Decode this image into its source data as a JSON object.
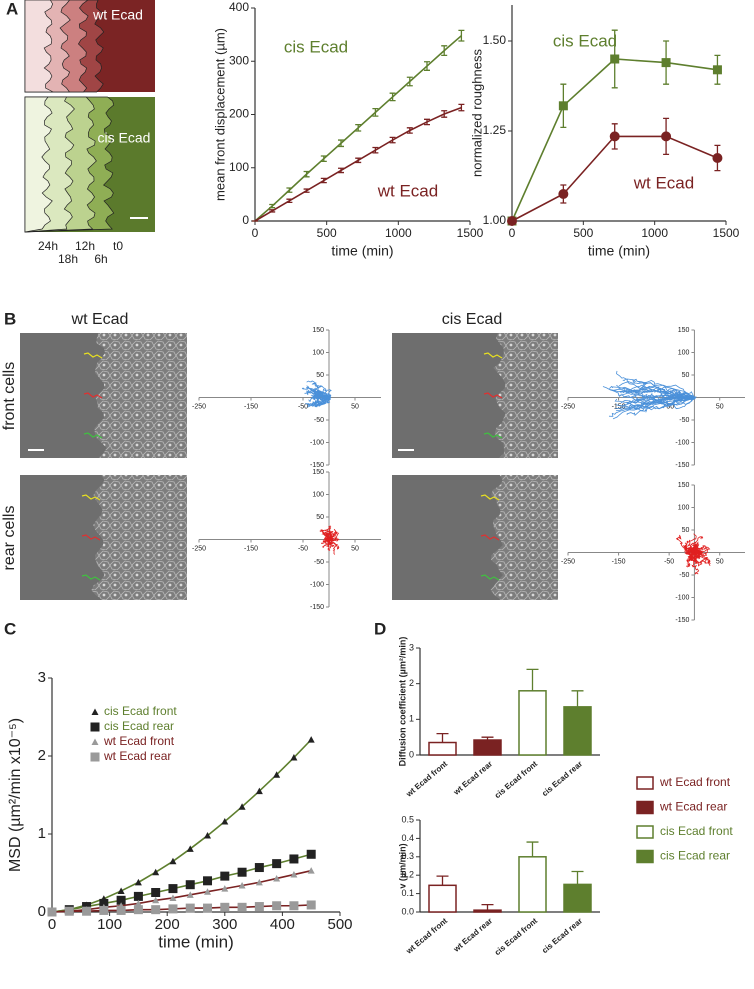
{
  "panel_labels": [
    "A",
    "B",
    "C",
    "D"
  ],
  "panel_a": {
    "image_labels": [
      "wt Ecad",
      "cis Ecad"
    ],
    "time_labels": [
      "24h",
      "18h",
      "12h",
      "6h",
      "t0"
    ]
  },
  "panel_b": {
    "column_titles": [
      "wt Ecad",
      "cis Ecad"
    ],
    "row_titles": [
      "front cells",
      "rear cells"
    ]
  },
  "chart_data": [
    {
      "type": "line",
      "xlabel": "time (min)",
      "ylabel": "mean front displacement (µm)",
      "x": [
        0,
        120,
        240,
        360,
        480,
        600,
        720,
        840,
        960,
        1080,
        1200,
        1320,
        1440
      ],
      "xlim": [
        0,
        1500
      ],
      "xticks": [
        0,
        500,
        1000,
        1500
      ],
      "ylim": [
        0,
        400
      ],
      "yticks": [
        0,
        100,
        200,
        300,
        400
      ],
      "series": [
        {
          "name": "cis Ecad",
          "color": "#5e7f2e",
          "marker": "none",
          "values": [
            0,
            28,
            58,
            88,
            117,
            146,
            175,
            204,
            233,
            262,
            291,
            320,
            348
          ],
          "errors": [
            0,
            3,
            4,
            5,
            5,
            6,
            6,
            7,
            7,
            8,
            8,
            9,
            10
          ]
        },
        {
          "name": "wt Ecad",
          "color": "#7a2222",
          "marker": "none",
          "values": [
            0,
            19,
            38,
            57,
            76,
            95,
            114,
            133,
            152,
            170,
            186,
            201,
            213
          ],
          "errors": [
            0,
            2,
            3,
            3,
            4,
            4,
            4,
            5,
            5,
            5,
            5,
            6,
            6
          ]
        }
      ]
    },
    {
      "type": "line",
      "xlabel": "time (min)",
      "ylabel": "normalized roughness",
      "x": [
        0,
        360,
        720,
        1080,
        1440
      ],
      "xlim": [
        0,
        1500
      ],
      "xticks": [
        0,
        500,
        1000,
        1500
      ],
      "ylim": [
        1.0,
        1.6
      ],
      "yticks": [
        {
          "value": 1.0,
          "label": "1.00"
        },
        1.25,
        {
          "value": 1.5,
          "label": "1.50"
        }
      ],
      "series": [
        {
          "name": "cis Ecad",
          "color": "#5e7f2e",
          "marker": "square",
          "values": [
            1.0,
            1.32,
            1.45,
            1.44,
            1.42
          ],
          "errors": [
            0,
            0.06,
            0.08,
            0.06,
            0.04
          ]
        },
        {
          "name": "wt Ecad",
          "color": "#7a2222",
          "marker": "circle",
          "values": [
            1.0,
            1.075,
            1.235,
            1.235,
            1.175
          ],
          "errors": [
            0,
            0.025,
            0.035,
            0.05,
            0.035
          ]
        }
      ]
    },
    {
      "type": "line",
      "xlabel": "time (min)",
      "ylabel": "MSD (µm²/min x10⁻⁵)",
      "x": [
        0,
        30,
        60,
        90,
        120,
        150,
        180,
        210,
        240,
        270,
        300,
        330,
        360,
        390,
        420,
        450
      ],
      "xlim": [
        0,
        500
      ],
      "xticks": [
        0,
        100,
        200,
        300,
        400,
        500
      ],
      "ylim": [
        0,
        3
      ],
      "yticks": [
        0,
        1,
        2,
        3
      ],
      "series": [
        {
          "name": "cis Ecad front",
          "color": "#5e7f2e",
          "marker": "triangle",
          "marker_color": "#222222",
          "values": [
            0,
            0.03,
            0.09,
            0.17,
            0.27,
            0.38,
            0.51,
            0.65,
            0.81,
            0.98,
            1.16,
            1.35,
            1.55,
            1.76,
            1.98,
            2.21
          ]
        },
        {
          "name": "cis Ecad rear",
          "color": "#5e7f2e",
          "marker": "square",
          "marker_color": "#222222",
          "values": [
            0,
            0.03,
            0.07,
            0.11,
            0.15,
            0.2,
            0.25,
            0.3,
            0.35,
            0.4,
            0.46,
            0.51,
            0.57,
            0.62,
            0.68,
            0.74
          ]
        },
        {
          "name": "wt Ecad front",
          "color": "#7a2222",
          "marker": "triangle",
          "marker_color": "#9a9a9a",
          "values": [
            0,
            0.01,
            0.03,
            0.06,
            0.08,
            0.11,
            0.15,
            0.18,
            0.22,
            0.26,
            0.3,
            0.34,
            0.38,
            0.43,
            0.48,
            0.53
          ]
        },
        {
          "name": "wt Ecad rear",
          "color": "#7a2222",
          "marker": "square",
          "marker_color": "#9a9a9a",
          "values": [
            0,
            0.01,
            0.01,
            0.02,
            0.02,
            0.03,
            0.03,
            0.04,
            0.05,
            0.05,
            0.06,
            0.06,
            0.07,
            0.08,
            0.08,
            0.09
          ]
        }
      ]
    },
    {
      "type": "bar",
      "ylabel": "Diffusion coefficient (µm²/min)",
      "categories": [
        "wt Ecad front",
        "wt Ecad rear",
        "cis Ecad front",
        "cis Ecad rear"
      ],
      "colors": [
        "#7a2222",
        "#7a2222",
        "#5e7f2e",
        "#5e7f2e"
      ],
      "filled": [
        false,
        true,
        false,
        true
      ],
      "values": [
        0.35,
        0.42,
        1.8,
        1.35
      ],
      "errors": [
        0.25,
        0.08,
        0.6,
        0.45
      ],
      "ylim": [
        0,
        3
      ],
      "yticks": [
        0,
        1,
        2,
        3
      ]
    },
    {
      "type": "bar",
      "ylabel": "v (µm/min)",
      "categories": [
        "wt Ecad front",
        "wt Ecad rear",
        "cis Ecad front",
        "cis Ecad rear"
      ],
      "colors": [
        "#7a2222",
        "#7a2222",
        "#5e7f2e",
        "#5e7f2e"
      ],
      "filled": [
        false,
        true,
        false,
        true
      ],
      "values": [
        0.145,
        0.01,
        0.3,
        0.15
      ],
      "errors": [
        0.05,
        0.03,
        0.08,
        0.07
      ],
      "ylim": [
        0,
        0.5
      ],
      "yticks": [
        {
          "value": 0,
          "label": "0.0"
        },
        0.1,
        0.2,
        0.3,
        0.4,
        0.5
      ]
    },
    {
      "type": "tracks",
      "color": "#4a90d9",
      "xlim": [
        -250,
        100
      ],
      "ylim": [
        -150,
        150
      ],
      "xticks": [
        -250,
        -150,
        -50,
        50
      ],
      "yticks": [
        150,
        100,
        50,
        -50,
        -100,
        -150
      ]
    },
    {
      "type": "tracks",
      "color": "#e02020",
      "xlim": [
        -250,
        100
      ],
      "ylim": [
        -150,
        150
      ],
      "xticks": [
        -250,
        -150,
        -50,
        50
      ],
      "yticks": [
        150,
        100,
        50,
        -50,
        -100,
        -150
      ]
    },
    {
      "type": "tracks",
      "color": "#4a90d9",
      "xlim": [
        -250,
        100
      ],
      "ylim": [
        -150,
        150
      ],
      "xticks": [
        -250,
        -150,
        -50,
        50
      ],
      "yticks": [
        150,
        100,
        50,
        -50,
        -100,
        -150
      ]
    },
    {
      "type": "tracks",
      "color": "#e02020",
      "xlim": [
        -250,
        100
      ],
      "ylim": [
        -150,
        150
      ],
      "xticks": [
        -250,
        -150,
        -50,
        50
      ],
      "yticks": [
        150,
        100,
        50,
        -50,
        -100,
        -150
      ]
    }
  ]
}
